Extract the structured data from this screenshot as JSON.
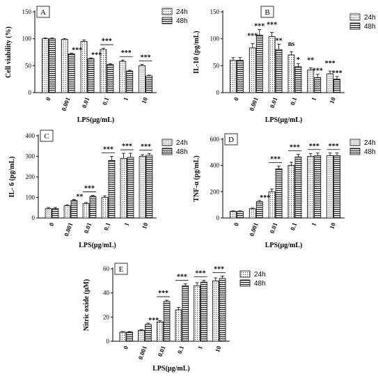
{
  "chart_data": [
    {
      "type": "bar",
      "panel_label": "A",
      "ylabel": "Cell viability (%)",
      "xlabel": "LPS(μg/mL)",
      "categories": [
        "0",
        "0.001",
        "0.01",
        "0.1",
        "1",
        "10"
      ],
      "ylim": [
        0,
        150
      ],
      "yticks": [
        0,
        50,
        100,
        150
      ],
      "series": [
        {
          "name": "24h",
          "values": [
            100,
            99,
            95,
            80,
            58,
            50
          ],
          "errors": [
            1.5,
            1.5,
            3,
            2.5,
            2.5,
            2.5
          ]
        },
        {
          "name": "48h",
          "values": [
            100,
            72,
            63,
            52,
            40,
            31
          ],
          "errors": [
            1.5,
            1.5,
            1.5,
            1.5,
            1.5,
            1.5
          ]
        }
      ],
      "annotations": [
        {
          "category": 1,
          "text": "***",
          "bracket": false
        },
        {
          "category": 2,
          "text": "***",
          "bracket": false
        },
        {
          "category": 3,
          "text": "***",
          "bracket": true
        },
        {
          "category": 4,
          "text": "***",
          "bracket": true
        },
        {
          "category": 5,
          "text": "***",
          "bracket": true
        }
      ],
      "legend": {
        "placement": "top-right",
        "entries": [
          "24h",
          "48h"
        ]
      }
    },
    {
      "type": "bar",
      "panel_label": "B",
      "ylabel": "IL-10 (pg/mL)",
      "xlabel": "LPS(μg/mL)",
      "categories": [
        "0",
        "0.001",
        "0.01",
        "0.1",
        "1",
        "10"
      ],
      "ylim": [
        0,
        150
      ],
      "yticks": [
        0,
        50,
        100,
        150
      ],
      "series": [
        {
          "name": "24h",
          "values": [
            60,
            83,
            104,
            70,
            42,
            35
          ],
          "errors": [
            5,
            8,
            8,
            6,
            4,
            5
          ]
        },
        {
          "name": "48h",
          "values": [
            60,
            107,
            80,
            48,
            28,
            25
          ],
          "errors": [
            5,
            10,
            10,
            6,
            6,
            5
          ]
        }
      ],
      "bar_annotations": [
        {
          "category": 1,
          "series": 0,
          "text": "***"
        },
        {
          "category": 1,
          "series": 1,
          "text": "***"
        },
        {
          "category": 2,
          "series": 0,
          "text": "***"
        },
        {
          "category": 2,
          "series": 1,
          "text": "**"
        },
        {
          "category": 3,
          "series": 0,
          "text": "ns"
        },
        {
          "category": 3,
          "series": 1,
          "text": "*"
        },
        {
          "category": 4,
          "series": 0,
          "text": "**"
        },
        {
          "category": 4,
          "series": 1,
          "text": "***"
        },
        {
          "category": 5,
          "series": 0,
          "text": "***"
        },
        {
          "category": 5,
          "series": 1,
          "text": "***"
        }
      ],
      "legend": {
        "placement": "top-right",
        "entries": [
          "24h",
          "48h"
        ]
      }
    },
    {
      "type": "bar",
      "panel_label": "C",
      "ylabel": "IL- 6 (pg/mL)",
      "xlabel": "LPS(μg/mL)",
      "categories": [
        "0",
        "0.001",
        "0.01",
        "0.1",
        "1",
        "10"
      ],
      "ylim": [
        0,
        400
      ],
      "yticks": [
        0,
        100,
        200,
        300,
        400
      ],
      "series": [
        {
          "name": "24h",
          "values": [
            45,
            60,
            70,
            100,
            290,
            300
          ],
          "errors": [
            6,
            4,
            5,
            8,
            25,
            8
          ]
        },
        {
          "name": "48h",
          "values": [
            45,
            85,
            105,
            280,
            295,
            305
          ],
          "errors": [
            6,
            5,
            5,
            20,
            20,
            8
          ]
        }
      ],
      "annotations": [
        {
          "category": 1,
          "text": "**",
          "bracket": false
        },
        {
          "category": 2,
          "text": "***",
          "bracket": true
        },
        {
          "category": 3,
          "text": "***",
          "bracket": true
        },
        {
          "category": 4,
          "text": "***",
          "bracket": true
        },
        {
          "category": 5,
          "text": "***",
          "bracket": true
        }
      ],
      "legend": {
        "placement": "top-right",
        "entries": [
          "24h",
          "48h"
        ]
      }
    },
    {
      "type": "bar",
      "panel_label": "D",
      "ylabel": "TNF-α (pg/mL)",
      "xlabel": "LPS(μg/mL)",
      "categories": [
        "0",
        "0.001",
        "0.01",
        "0.1",
        "1",
        "10"
      ],
      "ylim": [
        0,
        600
      ],
      "yticks": [
        0,
        200,
        400,
        600
      ],
      "series": [
        {
          "name": "24h",
          "values": [
            50,
            70,
            200,
            400,
            470,
            475
          ],
          "errors": [
            4,
            5,
            20,
            25,
            20,
            20
          ]
        },
        {
          "name": "48h",
          "values": [
            50,
            125,
            375,
            465,
            475,
            475
          ],
          "errors": [
            4,
            8,
            20,
            20,
            20,
            20
          ]
        }
      ],
      "annotations": [
        {
          "category": 1,
          "text": "***",
          "bracket": false
        },
        {
          "category": 2,
          "text": "***",
          "bracket": true
        },
        {
          "category": 3,
          "text": "***",
          "bracket": true
        },
        {
          "category": 4,
          "text": "***",
          "bracket": true
        },
        {
          "category": 5,
          "text": "***",
          "bracket": true
        }
      ],
      "legend": {
        "placement": "top-right",
        "entries": [
          "24h",
          "48h"
        ]
      }
    },
    {
      "type": "bar",
      "panel_label": "E",
      "ylabel": "Nitric oxide (μM)",
      "xlabel": "LPS(μg/mL)",
      "categories": [
        "0",
        "0.001",
        "0.01",
        "0.1",
        "1",
        "10"
      ],
      "ylim": [
        0,
        60
      ],
      "yticks": [
        0,
        20,
        40,
        60
      ],
      "series": [
        {
          "name": "24h",
          "values": [
            7.5,
            9,
            16,
            26,
            46,
            50
          ],
          "errors": [
            0.5,
            0.5,
            1,
            2,
            2.5,
            2.5
          ]
        },
        {
          "name": "48h",
          "values": [
            7.5,
            14,
            33,
            46,
            49,
            52
          ],
          "errors": [
            0.5,
            1,
            1,
            1.5,
            1.5,
            2
          ]
        }
      ],
      "annotations": [
        {
          "category": 1,
          "text": "***",
          "bracket": false
        },
        {
          "category": 2,
          "text": "***",
          "bracket": true
        },
        {
          "category": 3,
          "text": "***",
          "bracket": true
        },
        {
          "category": 4,
          "text": "***",
          "bracket": true
        },
        {
          "category": 5,
          "text": "***",
          "bracket": true
        }
      ],
      "legend": {
        "placement": "top-right",
        "entries": [
          "24h",
          "48h"
        ]
      }
    }
  ]
}
